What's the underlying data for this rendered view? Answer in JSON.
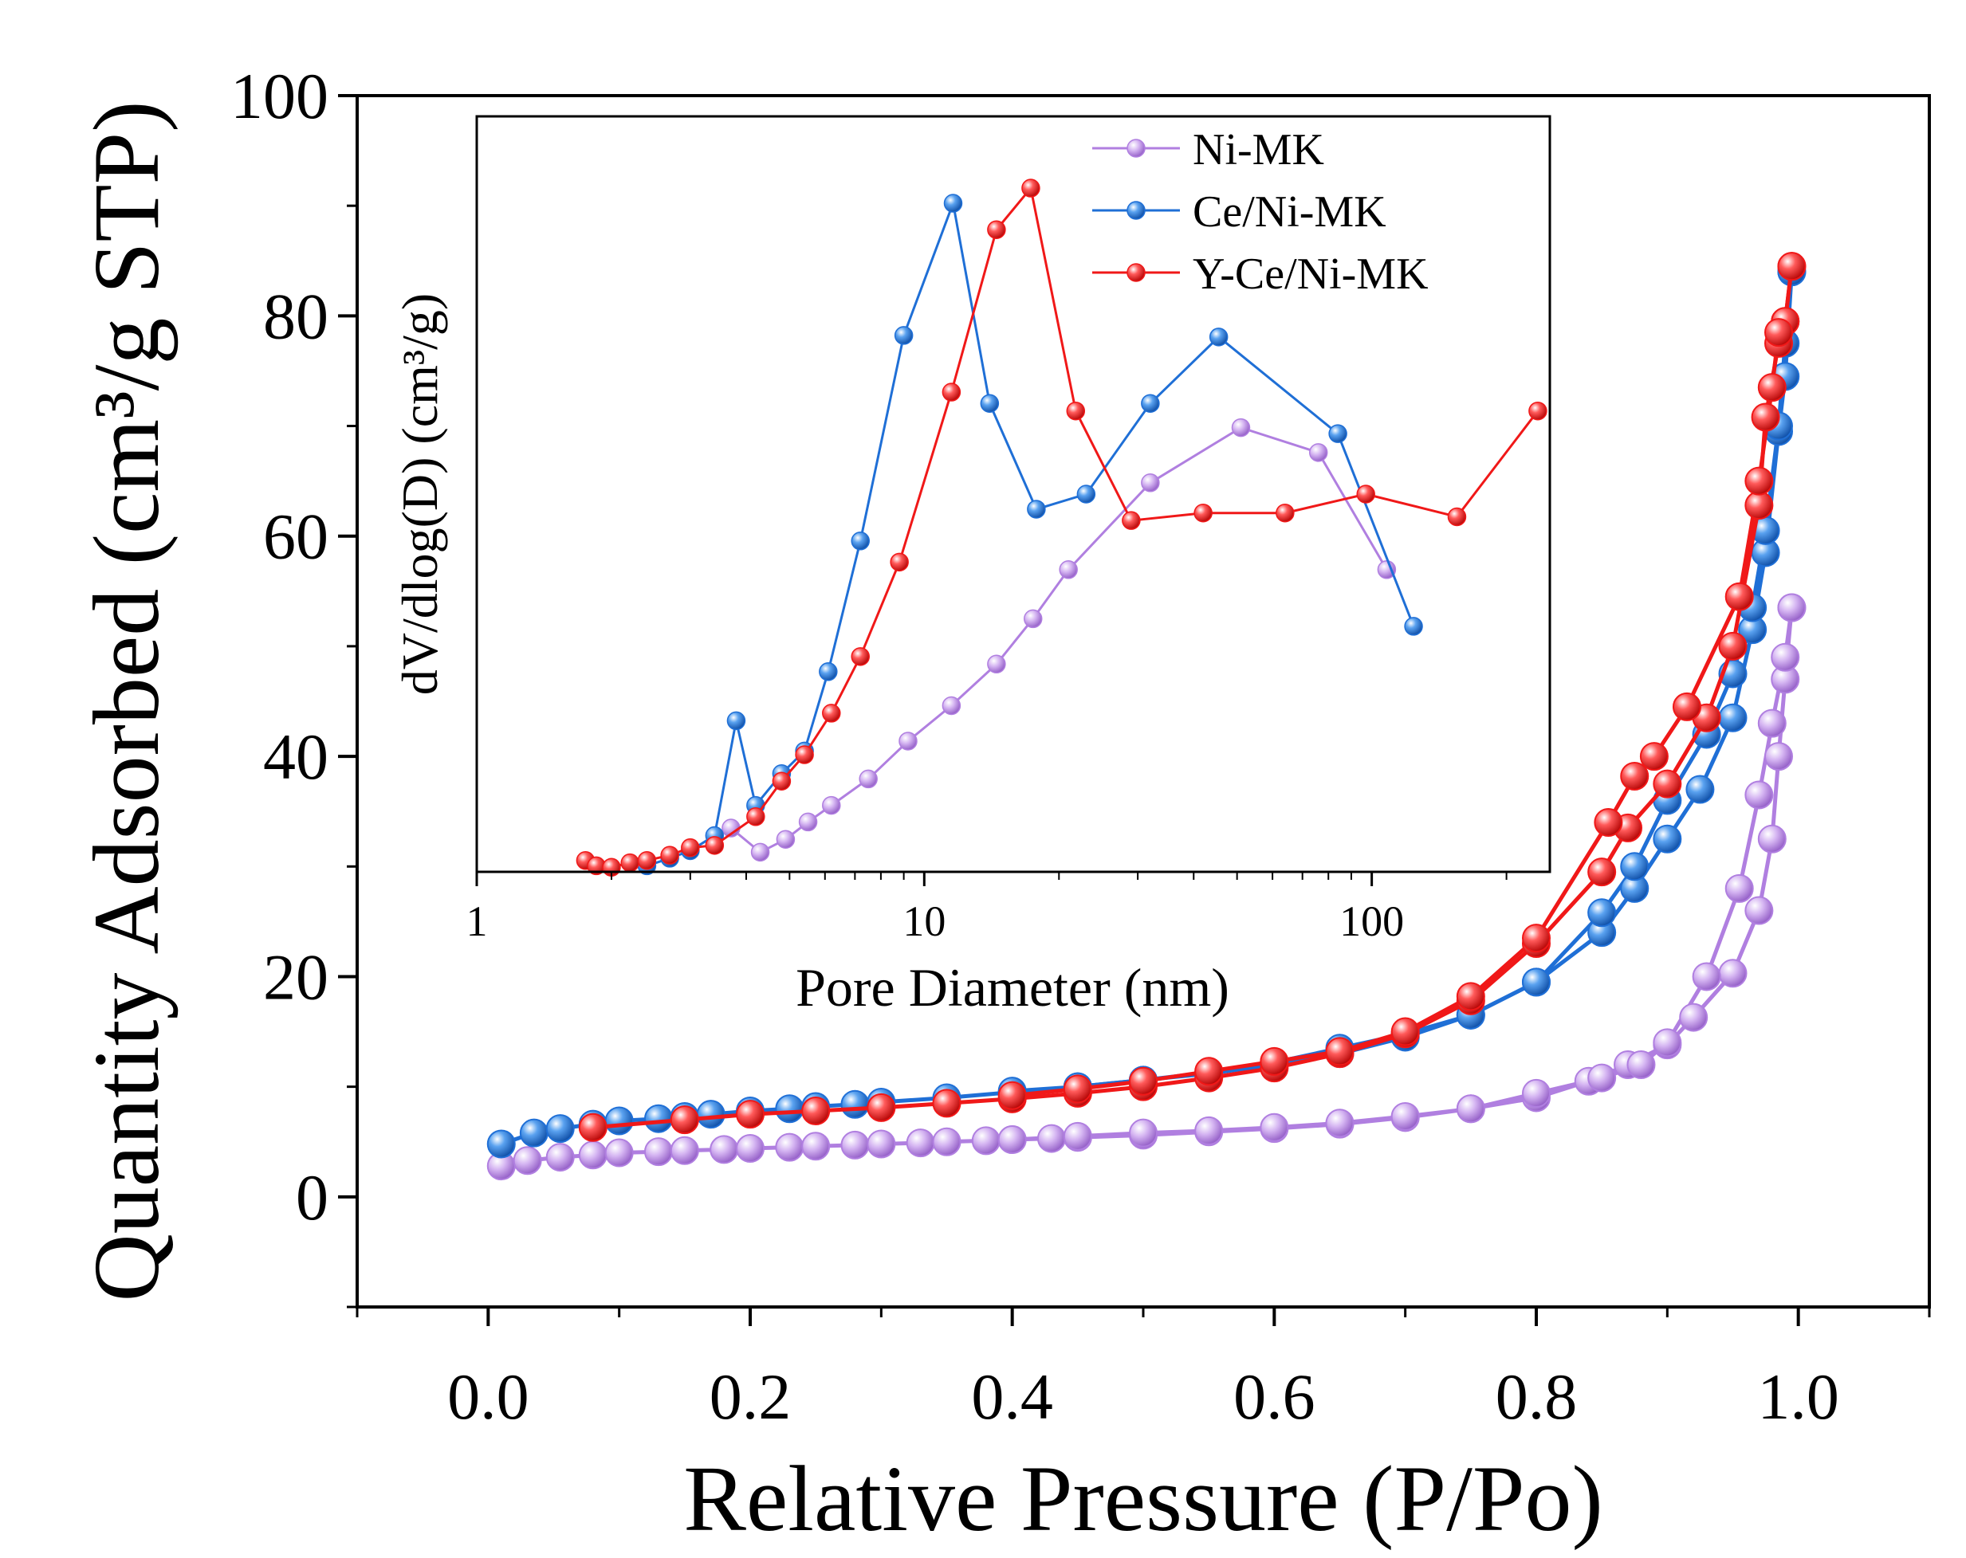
{
  "colors": {
    "ni_mk": "#B07FE0",
    "ce_ni_mk": "#1F6FD6",
    "y_ce_ni_mk": "#F01818",
    "axis": "#000000"
  },
  "chart_data": [
    {
      "type": "scatter",
      "name": "main-isotherm",
      "xlabel": "Relative Pressure (P/Po)",
      "ylabel": "Quantity Adsorbed (cm³/g STP)",
      "xlim": [
        -0.1,
        1.1
      ],
      "ylim": [
        -10,
        100
      ],
      "xticks": [
        0.0,
        0.2,
        0.4,
        0.6,
        0.8,
        1.0
      ],
      "xtick_labels": [
        "0.0",
        "0.2",
        "0.4",
        "0.6",
        "0.8",
        "1.0"
      ],
      "yticks": [
        0,
        20,
        40,
        60,
        80,
        100
      ],
      "ytick_labels": [
        "0",
        "20",
        "40",
        "60",
        "80",
        "100"
      ],
      "series": [
        {
          "name": "Ni-MK",
          "color_key": "ni_mk",
          "adsorption": {
            "x": [
              0.01,
              0.03,
              0.055,
              0.08,
              0.1,
              0.13,
              0.15,
              0.18,
              0.2,
              0.23,
              0.25,
              0.28,
              0.3,
              0.33,
              0.35,
              0.38,
              0.4,
              0.43,
              0.45,
              0.5,
              0.55,
              0.6,
              0.65,
              0.7,
              0.75,
              0.8,
              0.84,
              0.87,
              0.9,
              0.92,
              0.95,
              0.97,
              0.98,
              0.985,
              0.99,
              0.995
            ],
            "y": [
              2.8,
              3.3,
              3.6,
              3.8,
              4.0,
              4.1,
              4.2,
              4.3,
              4.4,
              4.5,
              4.6,
              4.7,
              4.8,
              4.9,
              5.0,
              5.1,
              5.2,
              5.3,
              5.4,
              5.6,
              5.9,
              6.2,
              6.6,
              7.2,
              8.0,
              9.0,
              10.5,
              12.0,
              13.8,
              16.3,
              20.3,
              26.0,
              32.5,
              40.0,
              47.0,
              53.5
            ]
          },
          "desorption": {
            "x": [
              0.995,
              0.99,
              0.98,
              0.97,
              0.955,
              0.93,
              0.9,
              0.88,
              0.85,
              0.8,
              0.75,
              0.7,
              0.65,
              0.6,
              0.55,
              0.5,
              0.45,
              0.4
            ],
            "y": [
              53.5,
              49.0,
              43.0,
              36.5,
              28.0,
              20.0,
              14.0,
              12.0,
              10.8,
              9.4,
              8.0,
              7.3,
              6.7,
              6.3,
              6.0,
              5.8,
              5.5,
              5.2
            ]
          }
        },
        {
          "name": "Ce/Ni-MK",
          "color_key": "ce_ni_mk",
          "adsorption": {
            "x": [
              0.01,
              0.035,
              0.055,
              0.08,
              0.1,
              0.13,
              0.15,
              0.17,
              0.2,
              0.23,
              0.25,
              0.28,
              0.3,
              0.35,
              0.4,
              0.45,
              0.5,
              0.55,
              0.6,
              0.65,
              0.7,
              0.75,
              0.8,
              0.85,
              0.875,
              0.9,
              0.925,
              0.95,
              0.965,
              0.975,
              0.985,
              0.99,
              0.995
            ],
            "y": [
              4.8,
              5.8,
              6.2,
              6.6,
              6.9,
              7.1,
              7.3,
              7.5,
              7.8,
              8.0,
              8.2,
              8.4,
              8.6,
              9.0,
              9.5,
              10.0,
              10.6,
              11.2,
              12.0,
              13.0,
              14.5,
              16.5,
              19.5,
              24.0,
              28.0,
              32.5,
              37.0,
              43.5,
              51.5,
              58.5,
              69.5,
              74.5,
              84.0
            ]
          },
          "desorption": {
            "x": [
              0.995,
              0.99,
              0.985,
              0.975,
              0.965,
              0.95,
              0.93,
              0.9,
              0.875,
              0.85,
              0.8,
              0.75,
              0.7,
              0.65,
              0.6,
              0.55,
              0.5,
              0.45,
              0.4
            ],
            "y": [
              84.0,
              77.5,
              70.0,
              60.5,
              53.5,
              47.5,
              42.0,
              36.0,
              30.0,
              25.8,
              19.5,
              16.5,
              14.8,
              13.5,
              12.2,
              11.3,
              10.6,
              10.0,
              9.6
            ]
          }
        },
        {
          "name": "Y-Ce/Ni-MK",
          "color_key": "y_ce_ni_mk",
          "adsorption": {
            "x": [
              0.08,
              0.15,
              0.2,
              0.25,
              0.3,
              0.35,
              0.4,
              0.45,
              0.5,
              0.55,
              0.6,
              0.65,
              0.7,
              0.75,
              0.8,
              0.85,
              0.87,
              0.9,
              0.93,
              0.95,
              0.97,
              0.975,
              0.985,
              0.99,
              0.995
            ],
            "y": [
              6.3,
              7.0,
              7.5,
              7.8,
              8.1,
              8.5,
              8.9,
              9.4,
              10.0,
              10.8,
              11.7,
              13.0,
              14.8,
              17.8,
              23.0,
              29.5,
              33.5,
              37.5,
              43.5,
              50.0,
              62.8,
              70.8,
              77.5,
              79.5,
              84.5
            ]
          },
          "desorption": {
            "x": [
              0.995,
              0.99,
              0.985,
              0.98,
              0.97,
              0.955,
              0.915,
              0.89,
              0.875,
              0.855,
              0.8,
              0.75,
              0.7,
              0.65,
              0.6,
              0.55,
              0.5,
              0.45,
              0.4
            ],
            "y": [
              84.5,
              79.5,
              78.5,
              73.5,
              65.0,
              54.5,
              44.5,
              40.0,
              38.2,
              34.0,
              23.5,
              18.2,
              15.0,
              13.2,
              12.3,
              11.4,
              10.5,
              9.8,
              9.2
            ]
          }
        }
      ]
    },
    {
      "type": "line",
      "name": "inset-pore-size",
      "xscale": "log",
      "xlabel": "Pore Diameter (nm)",
      "ylabel": "dV/dlog(D) (cm³/g)",
      "xlim": [
        1,
        250
      ],
      "ylim": [
        0,
        100
      ],
      "xticks": [
        1,
        10,
        100
      ],
      "xtick_labels": [
        "1",
        "10",
        "100"
      ],
      "legend_position": "top-right",
      "series": [
        {
          "name": "Ni-MK",
          "color_key": "ni_mk",
          "x": [
            3.7,
            4.3,
            4.9,
            5.5,
            6.2,
            7.5,
            9.2,
            11.5,
            14.5,
            17.5,
            21.0,
            32.0,
            51.0,
            76.0,
            108.0
          ],
          "y": [
            5.8,
            2.6,
            4.3,
            6.6,
            8.8,
            12.3,
            17.3,
            22.0,
            27.5,
            33.5,
            40.0,
            51.5,
            58.8,
            55.5,
            40.0
          ]
        },
        {
          "name": "Ce/Ni-MK",
          "color_key": "ce_ni_mk",
          "x": [
            2.4,
            2.7,
            3.0,
            3.4,
            3.8,
            4.2,
            4.8,
            5.4,
            6.1,
            7.2,
            9.0,
            11.6,
            14.0,
            17.8,
            23.0,
            32.0,
            45.5,
            84.0,
            124.0
          ],
          "y": [
            0.8,
            1.8,
            2.8,
            4.8,
            20.0,
            8.8,
            13.0,
            16.0,
            26.5,
            43.8,
            71.0,
            88.5,
            62.0,
            48.0,
            50.0,
            62.0,
            70.8,
            58.0,
            32.5
          ]
        },
        {
          "name": "Y-Ce/Ni-MK",
          "color_key": "y_ce_ni_mk",
          "x": [
            1.75,
            1.85,
            2.0,
            2.2,
            2.4,
            2.7,
            3.0,
            3.4,
            4.2,
            4.8,
            5.4,
            6.2,
            7.2,
            8.8,
            11.5,
            14.5,
            17.3,
            21.8,
            29.0,
            42.0,
            64.0,
            97.0,
            155.0,
            235.0
          ],
          "y": [
            1.5,
            0.8,
            0.6,
            1.2,
            1.5,
            2.2,
            3.2,
            3.5,
            7.3,
            12.0,
            15.5,
            21.0,
            28.5,
            41.0,
            63.5,
            85.0,
            90.5,
            61.0,
            46.5,
            47.5,
            47.5,
            50.0,
            47.0,
            61.0
          ]
        }
      ]
    }
  ]
}
